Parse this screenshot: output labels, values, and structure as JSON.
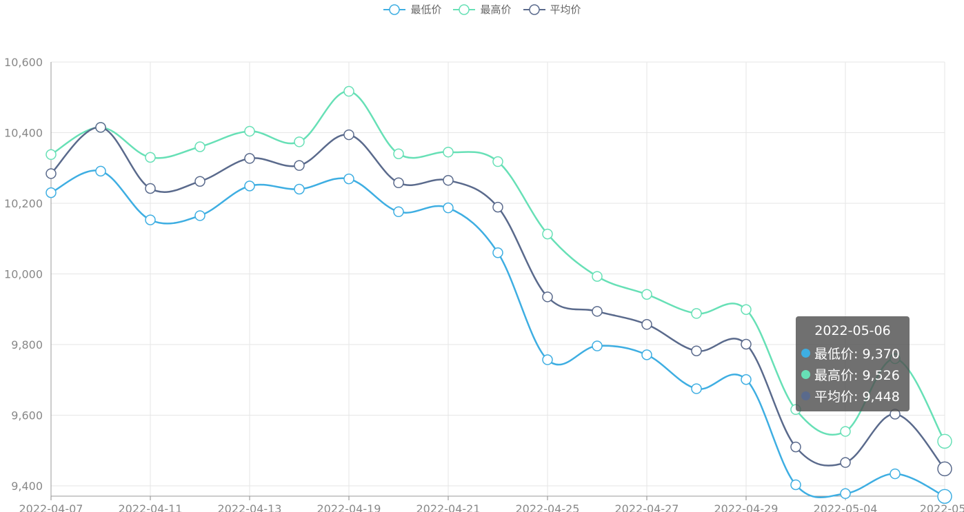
{
  "colors": {
    "min": "#3eaee2",
    "max": "#67e0b6",
    "avg": "#5a6a8c"
  },
  "legend": [
    {
      "key": "min",
      "label": "最低价"
    },
    {
      "key": "max",
      "label": "最高价"
    },
    {
      "key": "avg",
      "label": "平均价"
    }
  ],
  "tooltip": {
    "title": "2022-05-06",
    "rows": [
      {
        "key": "min",
        "text": "最低价: 9,370"
      },
      {
        "key": "max",
        "text": "最高价: 9,526"
      },
      {
        "key": "avg",
        "text": "平均价: 9,448"
      }
    ]
  },
  "chart_data": {
    "type": "line",
    "smooth": true,
    "grid": true,
    "legend_position": "top-center",
    "x": [
      "2022-04-07",
      "2022-04-08",
      "2022-04-11",
      "2022-04-12",
      "2022-04-13",
      "2022-04-14",
      "2022-04-19",
      "2022-04-20",
      "2022-04-21",
      "2022-04-22",
      "2022-04-25",
      "2022-04-26",
      "2022-04-27",
      "2022-04-28",
      "2022-04-29",
      "2022-05-04",
      "2022-05-04b",
      "2022-05-05",
      "2022-05-06"
    ],
    "x_tick_labels": [
      "2022-04-07",
      "2022-04-11",
      "2022-04-13",
      "2022-04-19",
      "2022-04-21",
      "2022-04-25",
      "2022-04-27",
      "2022-04-29",
      "2022-05-04",
      "2022-05-"
    ],
    "ylim": [
      9400,
      10600
    ],
    "y_ticks": [
      9400,
      9600,
      9800,
      10000,
      10200,
      10400,
      10600
    ],
    "y_tick_labels": [
      "9,400",
      "9,600",
      "9,800",
      "10,000",
      "10,200",
      "10,400",
      "10,600"
    ],
    "series": [
      {
        "key": "min",
        "name": "最低价",
        "values": [
          10230,
          10291,
          10153,
          10165,
          10249,
          10240,
          10269,
          10176,
          10187,
          10060,
          9757,
          9796,
          9771,
          9675,
          9701,
          9403,
          9378,
          9434,
          9370
        ]
      },
      {
        "key": "max",
        "name": "最高价",
        "values": [
          10338,
          10415,
          10330,
          10360,
          10404,
          10374,
          10517,
          10340,
          10345,
          10318,
          10113,
          9993,
          9942,
          9888,
          9899,
          9616,
          9554,
          9760,
          9526
        ]
      },
      {
        "key": "avg",
        "name": "平均价",
        "values": [
          10284,
          10415,
          10242,
          10262,
          10327,
          10307,
          10394,
          10258,
          10265,
          10189,
          9935,
          9894,
          9857,
          9782,
          9801,
          9510,
          9466,
          9603,
          9448
        ]
      }
    ]
  }
}
